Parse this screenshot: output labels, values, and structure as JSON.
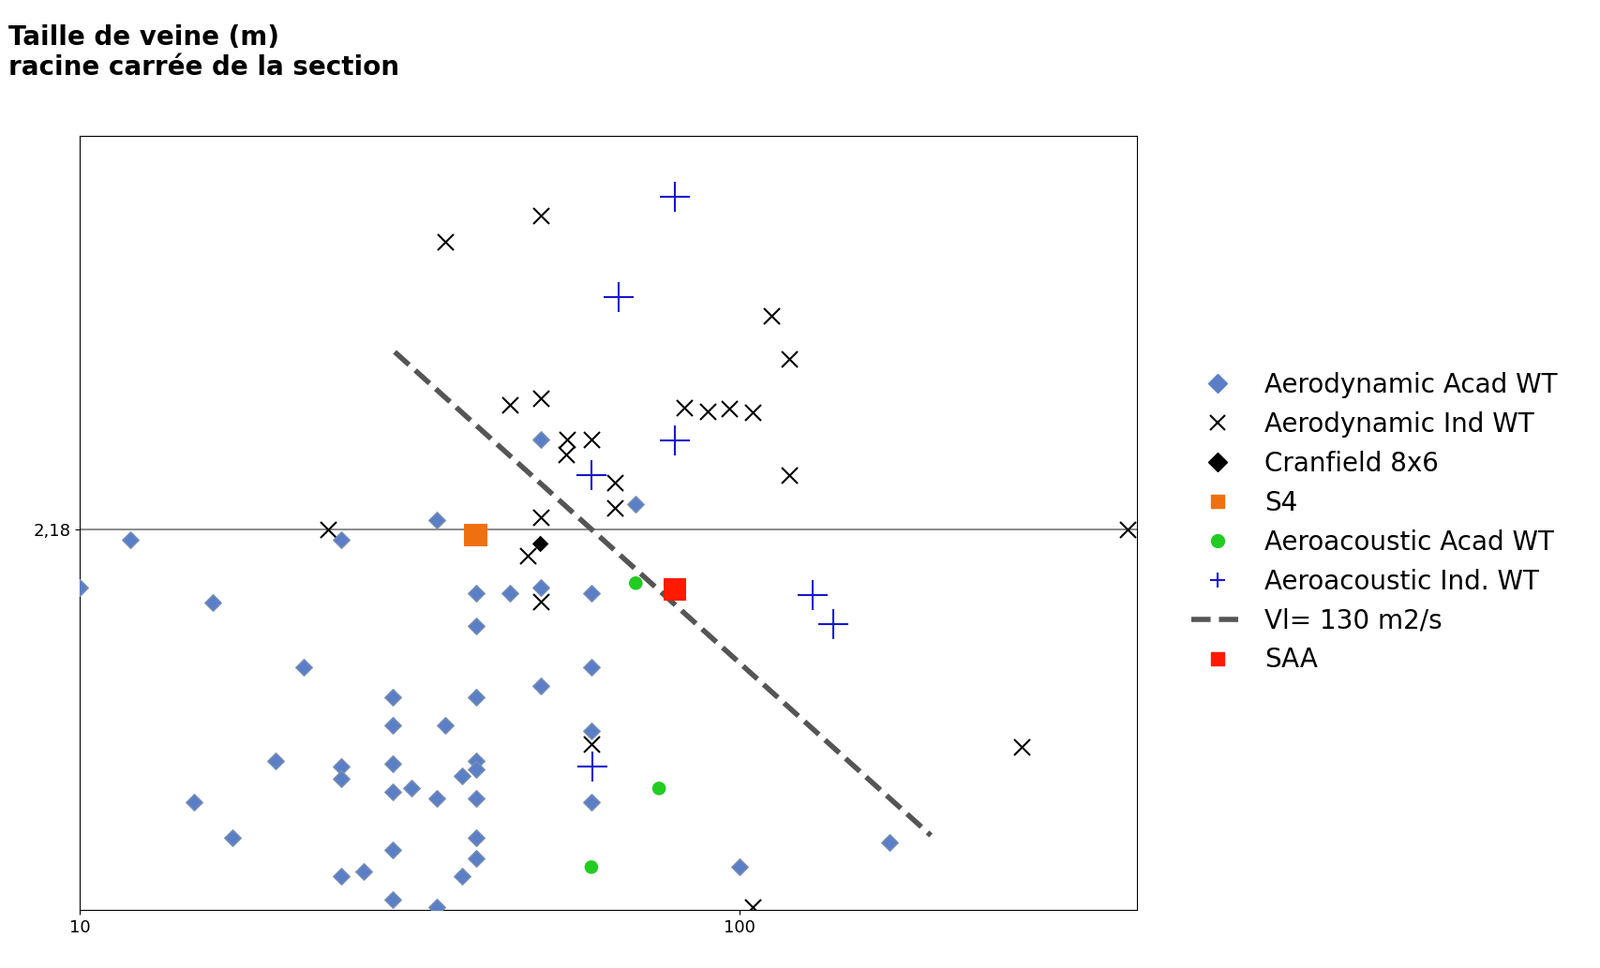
{
  "chart_data": {
    "type": "scatter",
    "y_label": "Taille de veine (m)\nracine carrée de la section",
    "log": true,
    "xlim": [
      10,
      400
    ],
    "xticks": [
      10,
      100
    ],
    "ylim": [
      0.5,
      10
    ],
    "yticks": [
      {
        "value": 2.18,
        "label": "2,18"
      }
    ],
    "grid": "y",
    "legend": "center left",
    "series": [
      {
        "name": "Aerodynamic Acad WT",
        "type": "scatter",
        "marker": "diamond",
        "color": "#5b7fc7",
        "x": [
          49.9,
          69.6,
          34.8,
          11.9,
          24.9,
          10,
          39.8,
          44.8,
          49.9,
          59.6,
          15.9,
          39.8,
          21.8,
          59.6,
          49.9,
          29.8,
          39.8,
          35.8,
          29.8,
          59.6,
          19.8,
          24.9,
          29.8,
          39.8,
          24.9,
          37.9,
          39.8,
          29.8,
          31.8,
          34.8,
          39.8,
          14.9,
          59.6,
          17.0,
          39.8,
          29.8,
          39.8,
          24.9,
          26.9,
          37.9,
          100,
          169,
          29.8,
          34.8
        ],
        "values": [
          3.08,
          2.4,
          2.26,
          2.09,
          2.09,
          1.74,
          1.7,
          1.7,
          1.74,
          1.7,
          1.64,
          1.5,
          1.28,
          1.28,
          1.19,
          1.14,
          1.14,
          1.02,
          1.02,
          1.0,
          0.89,
          0.87,
          0.88,
          0.89,
          0.83,
          0.84,
          0.86,
          0.79,
          0.8,
          0.77,
          0.77,
          0.76,
          0.76,
          0.66,
          0.66,
          0.63,
          0.61,
          0.57,
          0.58,
          0.57,
          0.59,
          0.65,
          0.52,
          0.505
        ]
      },
      {
        "name": "Aerodynamic Ind WT",
        "type": "scatter",
        "marker": "x",
        "color": "#000000",
        "x": [
          49.9,
          35.8,
          111.6,
          119,
          44.8,
          49.9,
          82.5,
          89.6,
          96.5,
          104.8,
          54.8,
          59.6,
          54.5,
          64.6,
          119,
          64.6,
          49.9,
          23.8,
          387,
          47.8,
          49.9,
          268,
          59.6,
          104.8
        ],
        "values": [
          7.34,
          6.62,
          4.97,
          4.22,
          3.53,
          3.62,
          3.49,
          3.44,
          3.48,
          3.43,
          3.08,
          3.08,
          2.91,
          2.61,
          2.69,
          2.37,
          2.28,
          2.18,
          2.18,
          1.97,
          1.65,
          0.94,
          0.95,
          0.505
        ]
      },
      {
        "name": "Cranfield 8x6",
        "type": "scatter",
        "marker": "diamond",
        "color": "#000000",
        "x": [
          49.9
        ],
        "values": [
          2.06
        ]
      },
      {
        "name": "S4",
        "type": "scatter",
        "marker": "square",
        "color": "#f07010",
        "x": [
          39.8
        ],
        "values": [
          2.13
        ]
      },
      {
        "name": "Aeroacoustic Acad WT",
        "type": "scatter",
        "marker": "circle",
        "color": "#22cc22",
        "x": [
          69.6,
          75.5,
          59.6
        ],
        "values": [
          1.77,
          0.8,
          0.59
        ]
      },
      {
        "name": "Aeroacoustic Ind. WT",
        "type": "scatter",
        "marker": "plus",
        "color": "#1515d0",
        "x": [
          79.7,
          65.5,
          79.7,
          59.6,
          129,
          138.7,
          59.8
        ],
        "values": [
          7.9,
          5.35,
          3.07,
          2.69,
          1.69,
          1.51,
          0.87
        ]
      },
      {
        "name": "Vl= 130 m2/s",
        "type": "line",
        "line_style": "dashed",
        "color": "#555555",
        "x": [
          30,
          195
        ],
        "values": [
          4.33,
          0.667
        ]
      },
      {
        "name": "SAA",
        "type": "scatter",
        "marker": "square",
        "color": "#ff1a00",
        "x": [
          79.7
        ],
        "values": [
          1.73
        ]
      }
    ]
  }
}
